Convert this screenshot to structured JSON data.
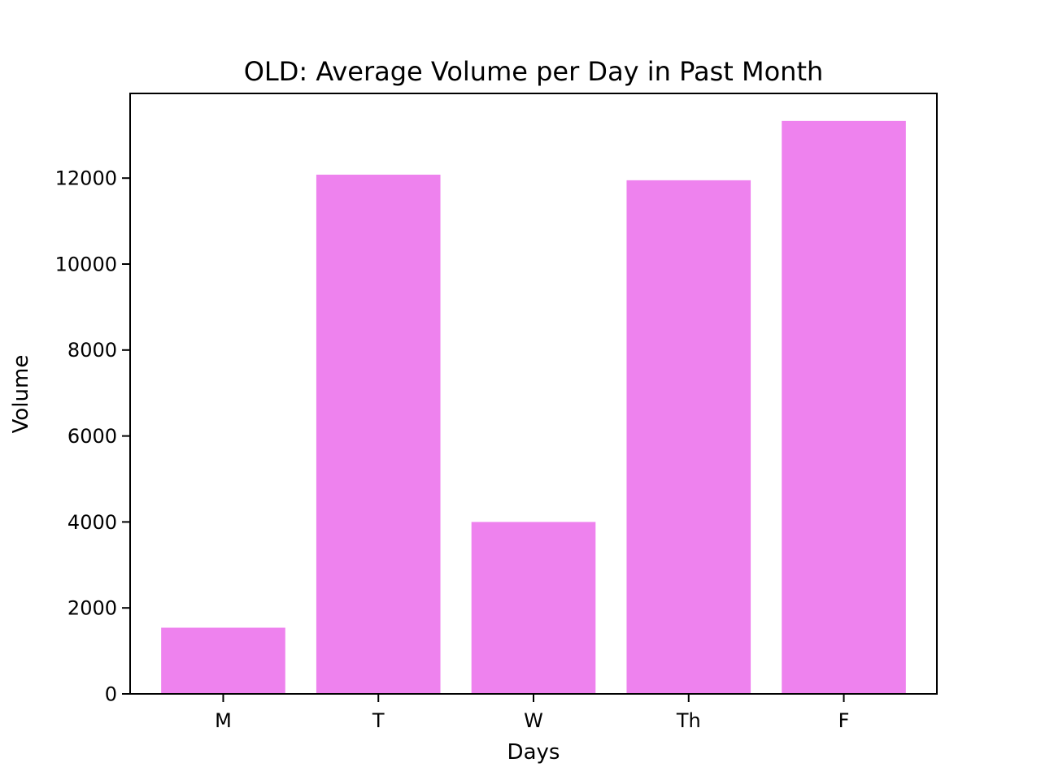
{
  "chart_data": {
    "type": "bar",
    "title": "OLD: Average Volume per Day in Past Month",
    "xlabel": "Days",
    "ylabel": "Volume",
    "categories": [
      "M",
      "T",
      "W",
      "Th",
      "F"
    ],
    "values": [
      1540,
      12080,
      4000,
      11950,
      13330
    ],
    "ylim": [
      0,
      13970
    ],
    "yticks": [
      0,
      2000,
      4000,
      6000,
      8000,
      10000,
      12000
    ],
    "bar_color": "#ee82ee",
    "grid": false,
    "legend": "none"
  }
}
